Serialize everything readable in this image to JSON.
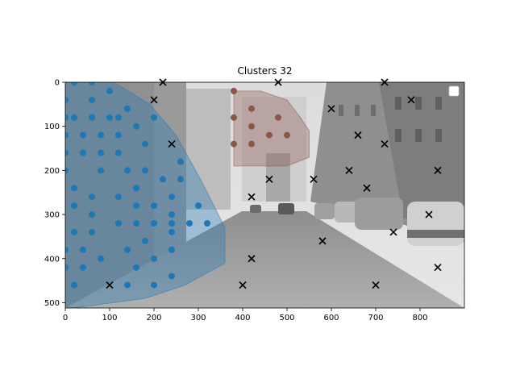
{
  "chart_data": {
    "type": "scatter",
    "title": "Clusters 32",
    "xlabel": "",
    "ylabel": "",
    "xlim": [
      0,
      900
    ],
    "ylim": [
      512,
      0
    ],
    "y_inverted": true,
    "x_ticks": [
      0,
      100,
      200,
      300,
      400,
      500,
      600,
      700,
      800
    ],
    "y_ticks": [
      0,
      100,
      200,
      300,
      400,
      500
    ],
    "background": "grayscale street photograph",
    "grid": false,
    "legend": {
      "placement": "upper right",
      "entries": []
    },
    "clusters": [
      {
        "marker": "circle",
        "color": "#1f77b4",
        "hull_color": "#1f77b4",
        "points": [
          [
            20,
            0
          ],
          [
            60,
            0
          ],
          [
            100,
            20
          ],
          [
            200,
            80
          ],
          [
            140,
            60
          ],
          [
            60,
            40
          ],
          [
            0,
            40
          ],
          [
            0,
            80
          ],
          [
            20,
            80
          ],
          [
            60,
            80
          ],
          [
            100,
            80
          ],
          [
            120,
            80
          ],
          [
            160,
            100
          ],
          [
            0,
            120
          ],
          [
            40,
            120
          ],
          [
            80,
            120
          ],
          [
            120,
            120
          ],
          [
            180,
            140
          ],
          [
            0,
            160
          ],
          [
            40,
            160
          ],
          [
            80,
            160
          ],
          [
            120,
            160
          ],
          [
            260,
            180
          ],
          [
            0,
            200
          ],
          [
            80,
            200
          ],
          [
            140,
            200
          ],
          [
            180,
            200
          ],
          [
            220,
            220
          ],
          [
            260,
            220
          ],
          [
            20,
            240
          ],
          [
            160,
            240
          ],
          [
            60,
            260
          ],
          [
            120,
            260
          ],
          [
            240,
            260
          ],
          [
            20,
            280
          ],
          [
            160,
            280
          ],
          [
            200,
            280
          ],
          [
            300,
            280
          ],
          [
            60,
            300
          ],
          [
            240,
            300
          ],
          [
            120,
            320
          ],
          [
            160,
            320
          ],
          [
            200,
            320
          ],
          [
            240,
            320
          ],
          [
            280,
            320
          ],
          [
            320,
            320
          ],
          [
            20,
            340
          ],
          [
            60,
            340
          ],
          [
            240,
            340
          ],
          [
            180,
            360
          ],
          [
            0,
            380
          ],
          [
            40,
            380
          ],
          [
            140,
            380
          ],
          [
            240,
            380
          ],
          [
            80,
            400
          ],
          [
            200,
            400
          ],
          [
            0,
            420
          ],
          [
            40,
            420
          ],
          [
            160,
            420
          ],
          [
            240,
            440
          ],
          [
            20,
            460
          ],
          [
            140,
            460
          ],
          [
            200,
            460
          ]
        ],
        "hull": [
          [
            60,
            0
          ],
          [
            110,
            0
          ],
          [
            190,
            50
          ],
          [
            250,
            120
          ],
          [
            310,
            230
          ],
          [
            360,
            330
          ],
          [
            360,
            410
          ],
          [
            270,
            460
          ],
          [
            180,
            490
          ],
          [
            20,
            512
          ],
          [
            0,
            512
          ],
          [
            0,
            0
          ]
        ]
      },
      {
        "marker": "circle",
        "color": "#8c564b",
        "hull_color": "#8c564b",
        "points": [
          [
            380,
            20
          ],
          [
            420,
            60
          ],
          [
            380,
            80
          ],
          [
            480,
            80
          ],
          [
            420,
            100
          ],
          [
            460,
            120
          ],
          [
            500,
            120
          ],
          [
            380,
            140
          ],
          [
            420,
            140
          ]
        ],
        "hull": [
          [
            380,
            20
          ],
          [
            440,
            20
          ],
          [
            500,
            40
          ],
          [
            530,
            80
          ],
          [
            550,
            110
          ],
          [
            550,
            170
          ],
          [
            500,
            190
          ],
          [
            450,
            190
          ],
          [
            380,
            190
          ]
        ]
      }
    ],
    "noise": {
      "marker": "x",
      "color": "#000000",
      "points": [
        [
          220,
          0
        ],
        [
          480,
          0
        ],
        [
          720,
          0
        ],
        [
          200,
          40
        ],
        [
          780,
          40
        ],
        [
          600,
          60
        ],
        [
          660,
          120
        ],
        [
          240,
          140
        ],
        [
          720,
          140
        ],
        [
          640,
          200
        ],
        [
          840,
          200
        ],
        [
          460,
          220
        ],
        [
          560,
          220
        ],
        [
          680,
          240
        ],
        [
          420,
          260
        ],
        [
          820,
          300
        ],
        [
          740,
          340
        ],
        [
          580,
          360
        ],
        [
          420,
          400
        ],
        [
          840,
          420
        ],
        [
          100,
          460
        ],
        [
          400,
          460
        ],
        [
          700,
          460
        ]
      ]
    }
  }
}
